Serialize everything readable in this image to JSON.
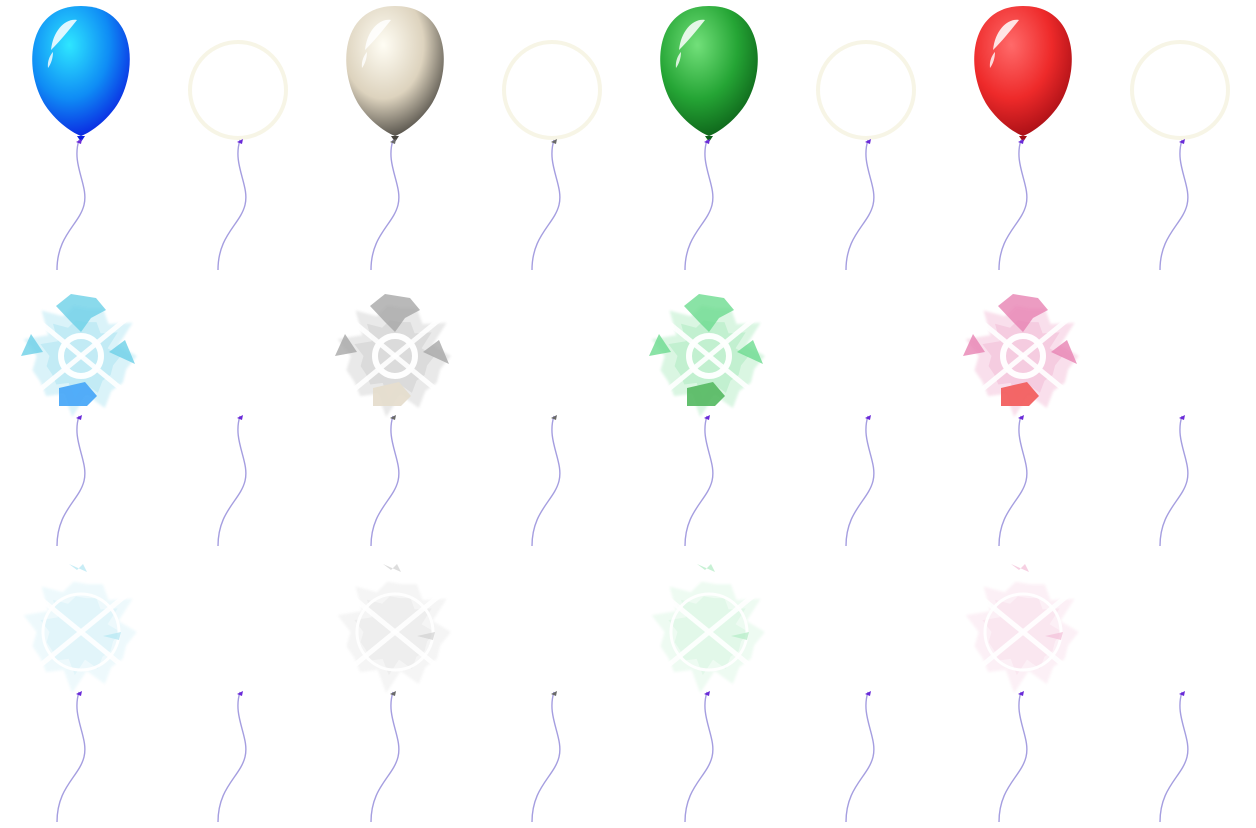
{
  "sprite_sheet": {
    "balloon_colors": [
      {
        "name": "blue",
        "light": "#2ee6ff",
        "base": "#0f8cf5",
        "dark": "#0a1ee0"
      },
      {
        "name": "white",
        "light": "#fffdf4",
        "base": "#ddd3be",
        "dark": "#47443e"
      },
      {
        "name": "green",
        "light": "#72e07a",
        "base": "#25a535",
        "dark": "#0c5f18"
      },
      {
        "name": "red",
        "light": "#ff6a6a",
        "base": "#ee2a2a",
        "dark": "#a30d14"
      }
    ],
    "shard_colors": [
      "#3cc0e0",
      "#8a8a8a",
      "#3cd06a",
      "#e05a9a"
    ],
    "knot_colors": [
      "#6a2ad8",
      "#6a6a6a",
      "#6a2ad8",
      "#6a2ad8"
    ],
    "string_color": "#a59ee0",
    "frame_rows": [
      {
        "state": "inflated",
        "fade": 1.0
      },
      {
        "state": "popping",
        "fade": 0.75
      },
      {
        "state": "popped",
        "fade": 0.35
      }
    ],
    "frame_kinds": [
      "balloon",
      "string-only"
    ]
  }
}
